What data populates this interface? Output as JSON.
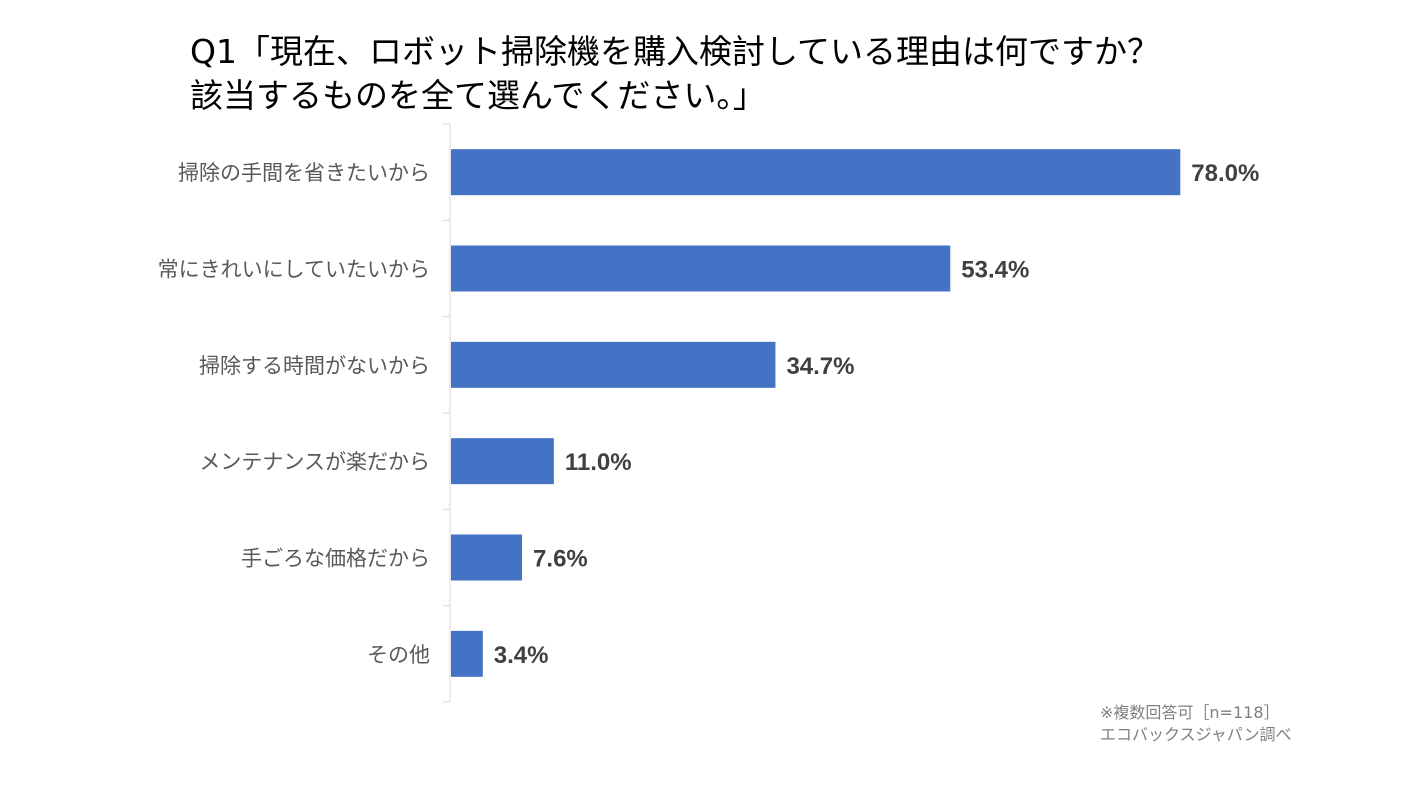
{
  "chart_data": {
    "type": "bar",
    "orientation": "horizontal",
    "title_line1": "Q1「現在、ロボット掃除機を購入検討している理由は何ですか？",
    "title_line2": "該当するものを全て選んでください。」",
    "categories": [
      "掃除の手間を省きたいから",
      "常にきれいにしていたいから",
      "掃除する時間がないから",
      "メンテナンスが楽だから",
      "手ごろな価格だから",
      "その他"
    ],
    "values": [
      78.0,
      53.4,
      34.7,
      11.0,
      7.6,
      3.4
    ],
    "value_labels": [
      "78.0%",
      "53.4%",
      "34.7%",
      "11.0%",
      "7.6%",
      "3.4%"
    ],
    "xlim": [
      0,
      100
    ],
    "bar_color": "#4472C4",
    "grid": false,
    "note_line1": "※複数回答可［n=118］",
    "note_line2": "エコバックスジャパン調べ"
  }
}
